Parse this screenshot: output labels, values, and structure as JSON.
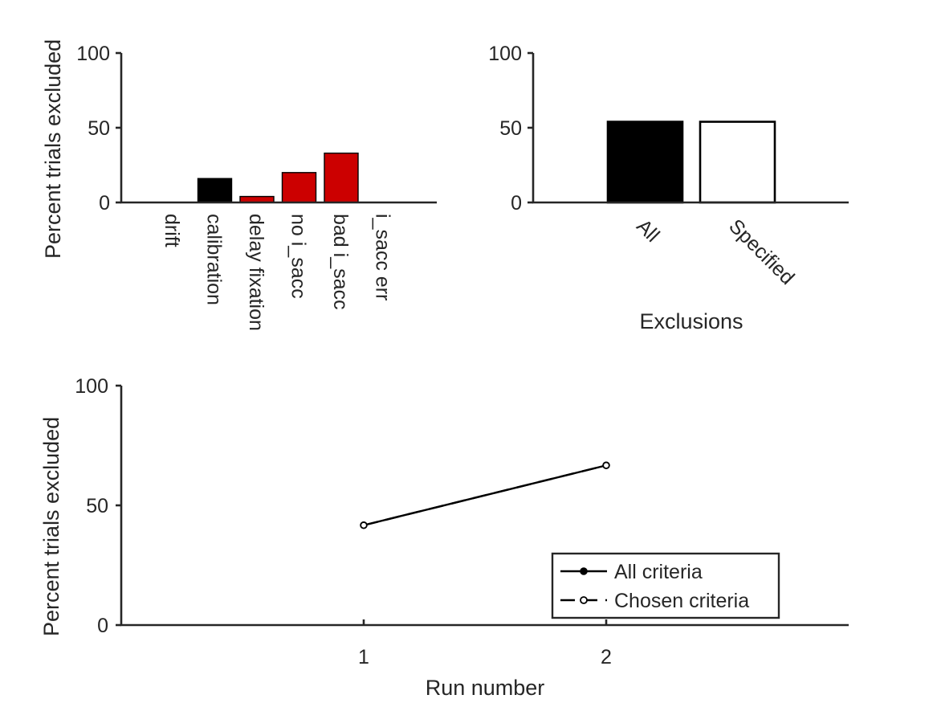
{
  "chart_data": [
    {
      "type": "bar",
      "ylabel": "Percent trials excluded",
      "ylim": [
        0,
        100
      ],
      "yticks": [
        "0",
        "50",
        "100"
      ],
      "categories": [
        "drift",
        "calibration",
        "delay fixation",
        "no i_sacc",
        "bad i_sacc",
        "i_sacc err"
      ],
      "values": [
        0,
        16,
        4,
        20,
        33,
        0
      ],
      "bar_colors": [
        "#000000",
        "#000000",
        "#cc0000",
        "#cc0000",
        "#cc0000",
        "#cc0000"
      ],
      "category_label_rotation": "vertical"
    },
    {
      "type": "bar",
      "xlabel": "Exclusions",
      "ylim": [
        0,
        100
      ],
      "yticks": [
        "0",
        "50",
        "100"
      ],
      "categories": [
        "All",
        "Specified"
      ],
      "values": [
        54,
        54
      ],
      "bar_fills": [
        "#000000",
        "#ffffff"
      ],
      "bar_edge": "#000000",
      "category_label_rotation": "diagonal"
    },
    {
      "type": "line",
      "xlabel": "Run number",
      "ylabel": "Percent trials excluded",
      "ylim": [
        0,
        100
      ],
      "xlim": [
        0,
        3
      ],
      "xticks": [
        "1",
        "2"
      ],
      "yticks": [
        "0",
        "50",
        "100"
      ],
      "x": [
        1,
        2
      ],
      "series": [
        {
          "name": "All criteria",
          "values": [
            41.7,
            66.7
          ],
          "marker": "filled-circle",
          "line": "solid"
        },
        {
          "name": "Chosen criteria",
          "values": [
            41.7,
            66.7
          ],
          "marker": "open-circle",
          "line": "dashed"
        }
      ],
      "legend": "bottom-right"
    }
  ]
}
